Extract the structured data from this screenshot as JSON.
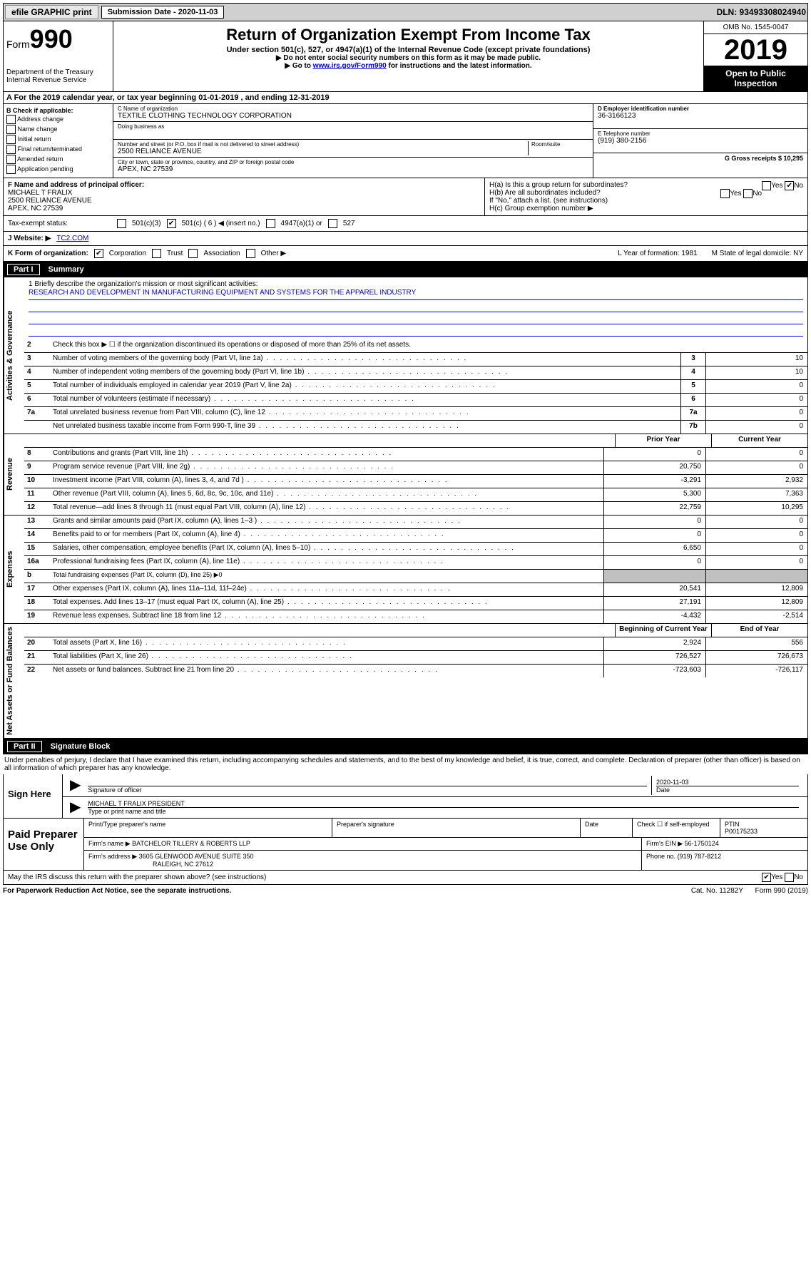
{
  "topbar": {
    "efile": "efile GRAPHIC print",
    "sub_label": "Submission Date - 2020-11-03",
    "dln": "DLN: 93493308024940"
  },
  "header": {
    "form_label": "Form",
    "form_num": "990",
    "dept": "Department of the Treasury",
    "irs": "Internal Revenue Service",
    "title": "Return of Organization Exempt From Income Tax",
    "sub1": "Under section 501(c), 527, or 4947(a)(1) of the Internal Revenue Code (except private foundations)",
    "sub2": "▶ Do not enter social security numbers on this form as it may be made public.",
    "sub3a": "▶ Go to ",
    "sub3link": "www.irs.gov/Form990",
    "sub3b": " for instructions and the latest information.",
    "omb": "OMB No. 1545-0047",
    "year": "2019",
    "open": "Open to Public Inspection"
  },
  "row_a": "A For the 2019 calendar year, or tax year beginning 01-01-2019     , and ending 12-31-2019",
  "col_b": {
    "header": "B Check if applicable:",
    "opts": [
      "Address change",
      "Name change",
      "Initial return",
      "Final return/terminated",
      "Amended return",
      "Application pending"
    ]
  },
  "col_c": {
    "name_label": "C Name of organization",
    "name": "TEXTILE CLOTHING TECHNOLOGY CORPORATION",
    "dba_label": "Doing business as",
    "addr_label": "Number and street (or P.O. box if mail is not delivered to street address)",
    "room_label": "Room/suite",
    "addr": "2500 RELIANCE AVENUE",
    "city_label": "City or town, state or province, country, and ZIP or foreign postal code",
    "city": "APEX, NC  27539"
  },
  "col_d": {
    "ein_label": "D Employer identification number",
    "ein": "36-3166123",
    "tel_label": "E Telephone number",
    "tel": "(919) 380-2156",
    "gross_label": "G Gross receipts $ 10,295"
  },
  "row_f": {
    "label": "F  Name and address of principal officer:",
    "name": "MICHAEL T FRALIX",
    "addr1": "2500 RELIANCE AVENUE",
    "addr2": "APEX, NC  27539"
  },
  "row_h": {
    "ha": "H(a)  Is this a group return for subordinates?",
    "hb": "H(b)  Are all subordinates included?",
    "hb_note": "If \"No,\" attach a list. (see instructions)",
    "hc": "H(c)  Group exemption number ▶"
  },
  "tax_status": {
    "label": "Tax-exempt status:",
    "c3": "501(c)(3)",
    "c_other": "501(c) ( 6 ) ◀ (insert no.)",
    "a1": "4947(a)(1) or",
    "s527": "527"
  },
  "website": {
    "label": "J Website: ▶",
    "val": "TC2.COM"
  },
  "kform": {
    "label": "K Form of organization:",
    "opts": [
      "Corporation",
      "Trust",
      "Association",
      "Other ▶"
    ],
    "l": "L Year of formation: 1981",
    "m": "M State of legal domicile: NY"
  },
  "part1": {
    "label": "Part I",
    "title": "Summary"
  },
  "mission": {
    "q": "1  Briefly describe the organization's mission or most significant activities:",
    "text": "RESEARCH AND DEVELOPMENT IN MANUFACTURING EQUIPMENT AND SYSTEMS FOR THE APPAREL INDUSTRY"
  },
  "gov_lines": [
    {
      "n": "2",
      "d": "Check this box ▶ ☐  if the organization discontinued its operations or disposed of more than 25% of its net assets."
    },
    {
      "n": "3",
      "d": "Number of voting members of the governing body (Part VI, line 1a)",
      "box": "3",
      "v": "10"
    },
    {
      "n": "4",
      "d": "Number of independent voting members of the governing body (Part VI, line 1b)",
      "box": "4",
      "v": "10"
    },
    {
      "n": "5",
      "d": "Total number of individuals employed in calendar year 2019 (Part V, line 2a)",
      "box": "5",
      "v": "0"
    },
    {
      "n": "6",
      "d": "Total number of volunteers (estimate if necessary)",
      "box": "6",
      "v": "0"
    },
    {
      "n": "7a",
      "d": "Total unrelated business revenue from Part VIII, column (C), line 12",
      "box": "7a",
      "v": "0"
    },
    {
      "n": "",
      "d": "Net unrelated business taxable income from Form 990-T, line 39",
      "box": "7b",
      "v": "0"
    }
  ],
  "rev_header": {
    "prior": "Prior Year",
    "current": "Current Year"
  },
  "rev_lines": [
    {
      "n": "8",
      "d": "Contributions and grants (Part VIII, line 1h)",
      "p": "0",
      "c": "0"
    },
    {
      "n": "9",
      "d": "Program service revenue (Part VIII, line 2g)",
      "p": "20,750",
      "c": "0"
    },
    {
      "n": "10",
      "d": "Investment income (Part VIII, column (A), lines 3, 4, and 7d )",
      "p": "-3,291",
      "c": "2,932"
    },
    {
      "n": "11",
      "d": "Other revenue (Part VIII, column (A), lines 5, 6d, 8c, 9c, 10c, and 11e)",
      "p": "5,300",
      "c": "7,363"
    },
    {
      "n": "12",
      "d": "Total revenue—add lines 8 through 11 (must equal Part VIII, column (A), line 12)",
      "p": "22,759",
      "c": "10,295"
    }
  ],
  "exp_lines": [
    {
      "n": "13",
      "d": "Grants and similar amounts paid (Part IX, column (A), lines 1–3 )",
      "p": "0",
      "c": "0"
    },
    {
      "n": "14",
      "d": "Benefits paid to or for members (Part IX, column (A), line 4)",
      "p": "0",
      "c": "0"
    },
    {
      "n": "15",
      "d": "Salaries, other compensation, employee benefits (Part IX, column (A), lines 5–10)",
      "p": "6,650",
      "c": "0"
    },
    {
      "n": "16a",
      "d": "Professional fundraising fees (Part IX, column (A), line 11e)",
      "p": "0",
      "c": "0"
    },
    {
      "n": "b",
      "d": "Total fundraising expenses (Part IX, column (D), line 25) ▶0",
      "shaded": true
    },
    {
      "n": "17",
      "d": "Other expenses (Part IX, column (A), lines 11a–11d, 11f–24e)",
      "p": "20,541",
      "c": "12,809"
    },
    {
      "n": "18",
      "d": "Total expenses. Add lines 13–17 (must equal Part IX, column (A), line 25)",
      "p": "27,191",
      "c": "12,809"
    },
    {
      "n": "19",
      "d": "Revenue less expenses. Subtract line 18 from line 12",
      "p": "-4,432",
      "c": "-2,514"
    }
  ],
  "na_header": {
    "b": "Beginning of Current Year",
    "e": "End of Year"
  },
  "na_lines": [
    {
      "n": "20",
      "d": "Total assets (Part X, line 16)",
      "p": "2,924",
      "c": "556"
    },
    {
      "n": "21",
      "d": "Total liabilities (Part X, line 26)",
      "p": "726,527",
      "c": "726,673"
    },
    {
      "n": "22",
      "d": "Net assets or fund balances. Subtract line 21 from line 20",
      "p": "-723,603",
      "c": "-726,117"
    }
  ],
  "part2": {
    "label": "Part II",
    "title": "Signature Block"
  },
  "penalty": "Under penalties of perjury, I declare that I have examined this return, including accompanying schedules and statements, and to the best of my knowledge and belief, it is true, correct, and complete. Declaration of preparer (other than officer) is based on all information of which preparer has any knowledge.",
  "sign": {
    "here": "Sign Here",
    "sig_label": "Signature of officer",
    "date": "2020-11-03",
    "date_label": "Date",
    "name": "MICHAEL T FRALIX PRESIDENT",
    "name_label": "Type or print name and title"
  },
  "prep": {
    "label": "Paid Preparer Use Only",
    "h1": "Print/Type preparer's name",
    "h2": "Preparer's signature",
    "h3": "Date",
    "h4": "Check ☐ if self-employed",
    "h5": "PTIN",
    "ptin": "P00175233",
    "firm_label": "Firm's name      ▶",
    "firm": "BATCHELOR TILLERY & ROBERTS LLP",
    "ein_label": "Firm's EIN ▶",
    "ein": "56-1750124",
    "addr_label": "Firm's address ▶",
    "addr1": "3605 GLENWOOD AVENUE SUITE 350",
    "addr2": "RALEIGH, NC  27612",
    "phone_label": "Phone no.",
    "phone": "(919) 787-8212"
  },
  "discuss": "May the IRS discuss this return with the preparer shown above? (see instructions)",
  "footer": {
    "left": "For Paperwork Reduction Act Notice, see the separate instructions.",
    "mid": "Cat. No. 11282Y",
    "right": "Form 990 (2019)"
  },
  "side_labels": {
    "gov": "Activities & Governance",
    "rev": "Revenue",
    "exp": "Expenses",
    "na": "Net Assets or Fund Balances"
  }
}
